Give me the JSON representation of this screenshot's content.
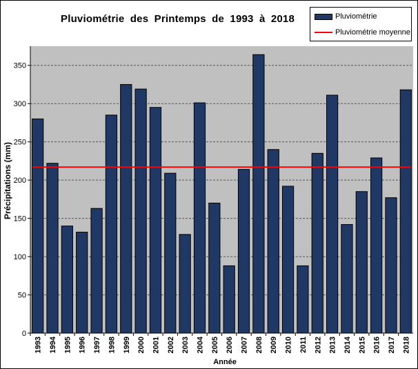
{
  "chart_data": {
    "type": "bar",
    "title": "Pluviométrie  des Printemps  de 1993  à 2018",
    "xlabel": "Année",
    "ylabel": "Précipitations (mm)",
    "ylim": [
      0,
      375
    ],
    "yticks": [
      0,
      50,
      100,
      150,
      200,
      250,
      300,
      350
    ],
    "grid": "horizontal dashed",
    "legend_placement": "top-right",
    "categories": [
      "1993",
      "1994",
      "1995",
      "1996",
      "1997",
      "1998",
      "1999",
      "2000",
      "2001",
      "2002",
      "2003",
      "2004",
      "2005",
      "2006",
      "2007",
      "2008",
      "2009",
      "2010",
      "2011",
      "2012",
      "2013",
      "2014",
      "2015",
      "2016",
      "2017",
      "2018"
    ],
    "series": [
      {
        "name": "Pluviométrie",
        "type": "bar",
        "color": "#1f3864",
        "values": [
          280,
          222,
          140,
          132,
          163,
          285,
          325,
          319,
          295,
          209,
          129,
          301,
          170,
          88,
          214,
          364,
          240,
          192,
          88,
          235,
          311,
          142,
          185,
          229,
          177,
          318
        ]
      },
      {
        "name": "Pluviométrie moyenne",
        "type": "line",
        "color": "#ff0000",
        "value": 217
      }
    ],
    "plot_background": "#c0c0c0"
  }
}
